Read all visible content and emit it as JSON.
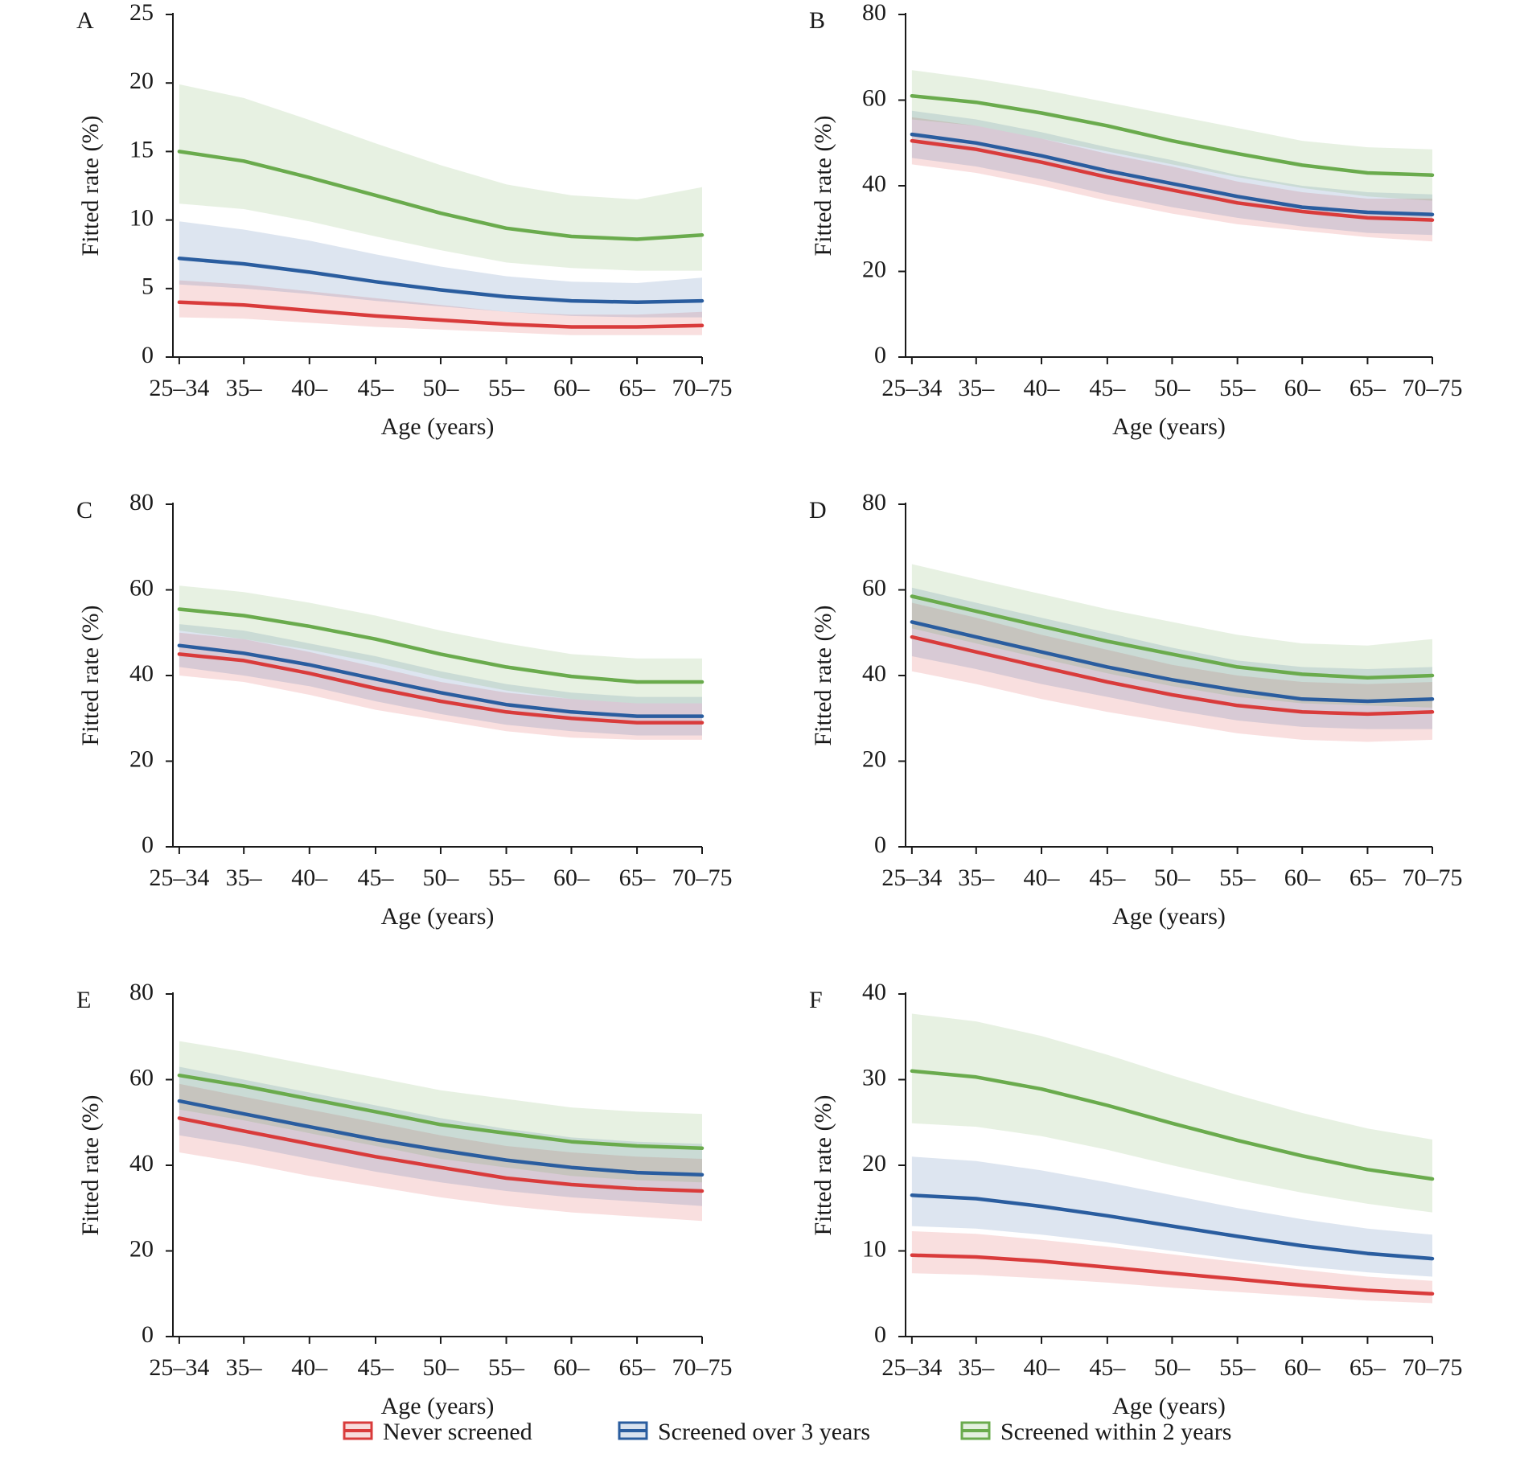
{
  "colors": {
    "never_screened": "#d93b3b",
    "screened_over_3_years": "#2a5d9f",
    "screened_within_2_years": "#6aab4d",
    "axis": "#1a1a1a"
  },
  "legend": {
    "placement": "bottom-center",
    "items": [
      {
        "label": "Never screened",
        "color": "#d93b3b"
      },
      {
        "label": "Screened over 3 years",
        "color": "#2a5d9f"
      },
      {
        "label": "Screened within 2 years",
        "color": "#6aab4d"
      }
    ]
  },
  "chart_data": [
    {
      "panel": "A",
      "type": "line",
      "xlabel": "Age (years)",
      "ylabel": "Fitted rate (%)",
      "categories": [
        "25–34",
        "35–",
        "40–",
        "45–",
        "50–",
        "55–",
        "60–",
        "65–",
        "70–75"
      ],
      "yticks": [
        0,
        5,
        10,
        15,
        20,
        25
      ],
      "ylim": [
        0,
        25
      ],
      "grid": false,
      "series": [
        {
          "name": "Never screened",
          "values": [
            4.0,
            3.8,
            3.4,
            3.0,
            2.7,
            2.4,
            2.2,
            2.2,
            2.3
          ],
          "lower": [
            2.9,
            2.8,
            2.5,
            2.2,
            2.0,
            1.8,
            1.6,
            1.6,
            1.6
          ],
          "upper": [
            5.6,
            5.3,
            4.8,
            4.3,
            3.8,
            3.3,
            3.1,
            3.1,
            3.3
          ]
        },
        {
          "name": "Screened over 3 years",
          "values": [
            7.2,
            6.8,
            6.2,
            5.5,
            4.9,
            4.4,
            4.1,
            4.0,
            4.1
          ],
          "lower": [
            5.3,
            5.0,
            4.6,
            4.1,
            3.7,
            3.3,
            3.0,
            2.9,
            2.9
          ],
          "upper": [
            9.9,
            9.3,
            8.5,
            7.5,
            6.6,
            5.9,
            5.5,
            5.4,
            5.8
          ]
        },
        {
          "name": "Screened within 2 years",
          "values": [
            15.0,
            14.3,
            13.1,
            11.8,
            10.5,
            9.4,
            8.8,
            8.6,
            8.9
          ],
          "lower": [
            11.2,
            10.8,
            9.9,
            8.8,
            7.8,
            6.9,
            6.5,
            6.3,
            6.3
          ],
          "upper": [
            19.9,
            18.9,
            17.3,
            15.6,
            14.0,
            12.6,
            11.8,
            11.5,
            12.4
          ]
        }
      ]
    },
    {
      "panel": "B",
      "type": "line",
      "xlabel": "Age (years)",
      "ylabel": "Fitted rate (%)",
      "categories": [
        "25–34",
        "35–",
        "40–",
        "45–",
        "50–",
        "55–",
        "60–",
        "65–",
        "70–75"
      ],
      "yticks": [
        0,
        20,
        40,
        60,
        80
      ],
      "ylim": [
        0,
        80
      ],
      "grid": false,
      "series": [
        {
          "name": "Never screened",
          "values": [
            50.5,
            48.5,
            45.5,
            42.0,
            39.0,
            36.0,
            34.0,
            32.5,
            32.0
          ],
          "lower": [
            45.0,
            43.0,
            40.0,
            36.5,
            33.5,
            31.0,
            29.5,
            28.0,
            27.0
          ],
          "upper": [
            56.0,
            54.0,
            51.0,
            47.5,
            44.5,
            41.0,
            38.5,
            37.0,
            37.0
          ]
        },
        {
          "name": "Screened over 3 years",
          "values": [
            52.0,
            50.0,
            47.0,
            43.5,
            40.5,
            37.5,
            35.0,
            33.8,
            33.3
          ],
          "lower": [
            46.5,
            44.5,
            41.5,
            38.0,
            35.0,
            32.5,
            30.5,
            29.0,
            28.5
          ],
          "upper": [
            57.5,
            55.5,
            52.5,
            49.0,
            46.0,
            42.5,
            40.0,
            38.5,
            38.0
          ]
        },
        {
          "name": "Screened within 2 years",
          "values": [
            61.0,
            59.5,
            57.0,
            54.0,
            50.5,
            47.5,
            44.8,
            43.0,
            42.5
          ],
          "lower": [
            55.5,
            54.0,
            51.0,
            48.0,
            45.0,
            42.0,
            39.5,
            37.5,
            36.5
          ],
          "upper": [
            67.0,
            65.0,
            62.5,
            59.5,
            56.5,
            53.5,
            50.5,
            49.0,
            48.5
          ]
        }
      ]
    },
    {
      "panel": "C",
      "type": "line",
      "xlabel": "Age (years)",
      "ylabel": "Fitted rate (%)",
      "categories": [
        "25–34",
        "35–",
        "40–",
        "45–",
        "50–",
        "55–",
        "60–",
        "65–",
        "70–75"
      ],
      "yticks": [
        0,
        20,
        40,
        60,
        80
      ],
      "ylim": [
        0,
        80
      ],
      "grid": false,
      "series": [
        {
          "name": "Never screened",
          "values": [
            45.0,
            43.5,
            40.5,
            37.0,
            34.0,
            31.5,
            30.0,
            29.0,
            29.0
          ],
          "lower": [
            40.0,
            38.5,
            35.5,
            32.0,
            29.5,
            27.0,
            25.5,
            25.0,
            25.0
          ],
          "upper": [
            50.0,
            48.5,
            45.5,
            42.0,
            38.5,
            36.0,
            34.5,
            33.5,
            33.5
          ]
        },
        {
          "name": "Screened over 3 years",
          "values": [
            47.0,
            45.2,
            42.5,
            39.2,
            36.0,
            33.2,
            31.5,
            30.5,
            30.5
          ],
          "lower": [
            42.0,
            40.0,
            37.5,
            34.0,
            31.0,
            28.5,
            27.0,
            26.0,
            26.0
          ],
          "upper": [
            52.0,
            50.5,
            47.5,
            44.5,
            41.0,
            38.0,
            36.0,
            35.0,
            35.0
          ]
        },
        {
          "name": "Screened within 2 years",
          "values": [
            55.5,
            54.0,
            51.5,
            48.5,
            45.0,
            42.0,
            39.8,
            38.5,
            38.5
          ],
          "lower": [
            50.5,
            48.5,
            46.0,
            43.0,
            39.5,
            36.5,
            34.5,
            33.5,
            33.5
          ],
          "upper": [
            61.0,
            59.5,
            57.0,
            54.0,
            50.5,
            47.5,
            45.0,
            44.0,
            44.0
          ]
        }
      ]
    },
    {
      "panel": "D",
      "type": "line",
      "xlabel": "Age (years)",
      "ylabel": "Fitted rate (%)",
      "categories": [
        "25–34",
        "35–",
        "40–",
        "45–",
        "50–",
        "55–",
        "60–",
        "65–",
        "70–75"
      ],
      "yticks": [
        0,
        20,
        40,
        60,
        80
      ],
      "ylim": [
        0,
        80
      ],
      "grid": false,
      "series": [
        {
          "name": "Never screened",
          "values": [
            49.0,
            45.5,
            42.0,
            38.5,
            35.5,
            33.0,
            31.5,
            31.0,
            31.5
          ],
          "lower": [
            41.0,
            38.0,
            34.5,
            31.5,
            29.0,
            26.5,
            25.0,
            24.5,
            25.0
          ],
          "upper": [
            57.0,
            53.5,
            49.5,
            46.0,
            42.5,
            40.0,
            38.5,
            38.0,
            38.5
          ]
        },
        {
          "name": "Screened over 3 years",
          "values": [
            52.5,
            49.0,
            45.5,
            42.0,
            39.0,
            36.5,
            34.5,
            34.0,
            34.5
          ],
          "lower": [
            44.5,
            41.5,
            38.0,
            35.0,
            32.0,
            29.5,
            28.0,
            27.5,
            27.5
          ],
          "upper": [
            60.5,
            57.0,
            53.5,
            50.0,
            46.5,
            43.5,
            42.0,
            41.5,
            42.0
          ]
        },
        {
          "name": "Screened within 2 years",
          "values": [
            58.5,
            55.0,
            51.5,
            48.0,
            45.0,
            42.0,
            40.3,
            39.5,
            40.0
          ],
          "lower": [
            51.0,
            47.5,
            44.0,
            40.5,
            37.5,
            35.0,
            33.5,
            33.0,
            32.5
          ],
          "upper": [
            66.0,
            62.5,
            59.0,
            55.5,
            52.5,
            49.5,
            47.5,
            47.0,
            48.5
          ]
        }
      ]
    },
    {
      "panel": "E",
      "type": "line",
      "xlabel": "Age (years)",
      "ylabel": "Fitted rate (%)",
      "categories": [
        "25–34",
        "35–",
        "40–",
        "45–",
        "50–",
        "55–",
        "60–",
        "65–",
        "70–75"
      ],
      "yticks": [
        0,
        20,
        40,
        60,
        80
      ],
      "ylim": [
        0,
        80
      ],
      "grid": false,
      "series": [
        {
          "name": "Never screened",
          "values": [
            51.0,
            48.0,
            45.0,
            42.0,
            39.5,
            37.0,
            35.5,
            34.5,
            34.0
          ],
          "lower": [
            43.0,
            40.5,
            37.5,
            35.0,
            32.5,
            30.5,
            29.0,
            28.0,
            27.0
          ],
          "upper": [
            59.0,
            56.0,
            53.0,
            50.0,
            47.0,
            44.5,
            43.0,
            42.0,
            41.5
          ]
        },
        {
          "name": "Screened over 3 years",
          "values": [
            55.0,
            52.0,
            49.0,
            46.0,
            43.5,
            41.2,
            39.5,
            38.3,
            37.8
          ],
          "lower": [
            47.0,
            44.5,
            41.5,
            38.5,
            36.0,
            34.0,
            32.5,
            31.5,
            30.5
          ],
          "upper": [
            63.0,
            60.0,
            57.0,
            54.0,
            51.0,
            48.5,
            46.5,
            45.5,
            45.0
          ]
        },
        {
          "name": "Screened within 2 years",
          "values": [
            61.0,
            58.5,
            55.5,
            52.5,
            49.5,
            47.5,
            45.5,
            44.5,
            44.0
          ],
          "lower": [
            53.0,
            50.5,
            47.5,
            44.5,
            41.5,
            39.5,
            37.5,
            36.5,
            36.0
          ],
          "upper": [
            69.0,
            66.5,
            63.5,
            60.5,
            57.5,
            55.5,
            53.5,
            52.5,
            52.0
          ]
        }
      ]
    },
    {
      "panel": "F",
      "type": "line",
      "xlabel": "Age (years)",
      "ylabel": "Fitted rate (%)",
      "categories": [
        "25–34",
        "35–",
        "40–",
        "45–",
        "50–",
        "55–",
        "60–",
        "65–",
        "70–75"
      ],
      "yticks": [
        0,
        10,
        20,
        30,
        40
      ],
      "ylim": [
        0,
        40
      ],
      "grid": false,
      "series": [
        {
          "name": "Never screened",
          "values": [
            9.5,
            9.3,
            8.8,
            8.1,
            7.4,
            6.7,
            6.0,
            5.4,
            5.0
          ],
          "lower": [
            7.4,
            7.2,
            6.8,
            6.3,
            5.7,
            5.2,
            4.7,
            4.2,
            3.9
          ],
          "upper": [
            12.3,
            12.0,
            11.3,
            10.5,
            9.6,
            8.7,
            7.8,
            7.0,
            6.5
          ]
        },
        {
          "name": "Screened over 3 years",
          "values": [
            16.5,
            16.1,
            15.2,
            14.1,
            12.9,
            11.7,
            10.6,
            9.7,
            9.1
          ],
          "lower": [
            12.9,
            12.6,
            11.9,
            11.0,
            10.0,
            9.0,
            8.2,
            7.5,
            7.0
          ],
          "upper": [
            21.0,
            20.5,
            19.4,
            18.0,
            16.5,
            15.0,
            13.7,
            12.6,
            11.9
          ]
        },
        {
          "name": "Screened within 2 years",
          "values": [
            31.0,
            30.3,
            28.9,
            27.0,
            24.9,
            22.9,
            21.1,
            19.5,
            18.4
          ],
          "lower": [
            24.9,
            24.5,
            23.4,
            21.8,
            20.0,
            18.3,
            16.8,
            15.5,
            14.5
          ],
          "upper": [
            37.7,
            36.8,
            35.1,
            32.9,
            30.5,
            28.2,
            26.1,
            24.3,
            23.0
          ]
        }
      ]
    }
  ]
}
